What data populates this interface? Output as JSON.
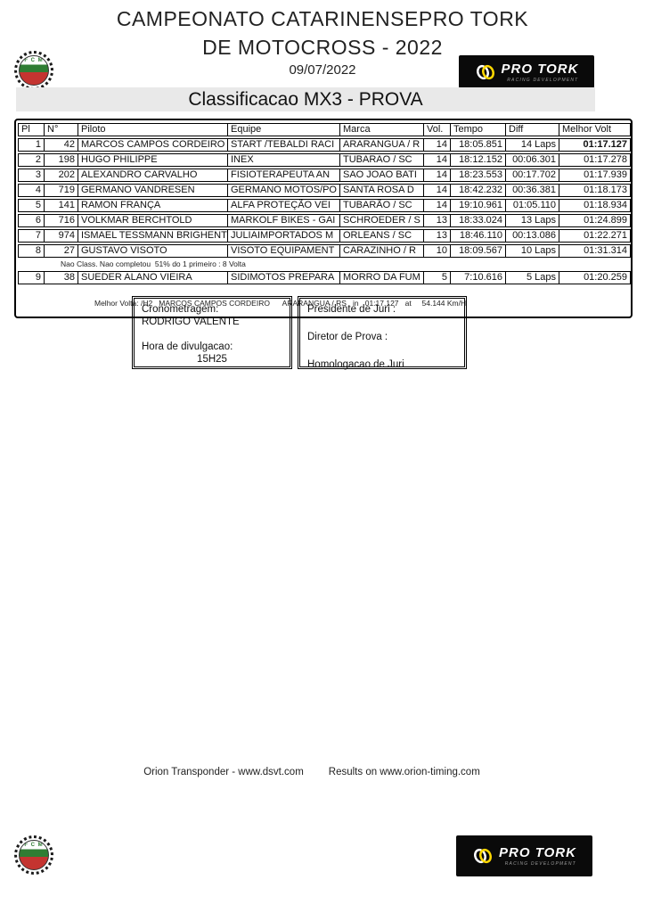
{
  "header": {
    "title_line1": "CAMPEONATO CATARINENSEPRO TORK",
    "title_line2": "DE MOTOCROSS - 2022",
    "date": "09/07/2022",
    "banner": "Classificacao MX3 - PROVA"
  },
  "logos": {
    "fcm_label": "F C M",
    "protork_name": "PRO TORK",
    "protork_sub": "RACING DEVELOPMENT",
    "protork_bg": "#0a0a0a",
    "protork_accent": "#ffd800",
    "fcm_green": "#2f7d33",
    "fcm_red": "#c43430"
  },
  "results_table": {
    "columns": [
      "Pl",
      "N°",
      "Piloto",
      "Equipe",
      "Marca",
      "Vol.",
      "Tempo",
      "Diff",
      "Melhor Volt"
    ],
    "rows": [
      {
        "pl": "1",
        "num": "42",
        "pilot": "MARCOS CAMPOS CORDEIRO",
        "team": "START /TEBALDI RACI",
        "brand": "ARARANGUA / R",
        "laps": "14",
        "time": "18:05.851",
        "diff": "14 Laps",
        "best": "01:17.127",
        "best_bold": true
      },
      {
        "pl": "2",
        "num": "198",
        "pilot": "HUGO PHILIPPE",
        "team": "INEX",
        "brand": "TUBARAO / SC",
        "laps": "14",
        "time": "18:12.152",
        "diff": "00:06.301",
        "best": "01:17.278"
      },
      {
        "pl": "3",
        "num": "202",
        "pilot": "ALEXANDRO CARVALHO",
        "team": "FISIOTERAPEUTA AN",
        "brand": "SAO JOAO BATI",
        "laps": "14",
        "time": "18:23.553",
        "diff": "00:17.702",
        "best": "01:17.939"
      },
      {
        "pl": "4",
        "num": "719",
        "pilot": "GERMANO VANDRESEN",
        "team": "GERMANO MOTOS/PO",
        "brand": "SANTA ROSA D",
        "laps": "14",
        "time": "18:42.232",
        "diff": "00:36.381",
        "best": "01:18.173"
      },
      {
        "pl": "5",
        "num": "141",
        "pilot": "RAMON FRANÇA",
        "team": "ALFA PROTEÇÃO VEI",
        "brand": "TUBARÃO / SC",
        "laps": "14",
        "time": "19:10.961",
        "diff": "01:05.110",
        "best": "01:18.934"
      },
      {
        "pl": "6",
        "num": "716",
        "pilot": "VOLKMAR BERCHTOLD",
        "team": "MARKOLF BIKES - GAI",
        "brand": "SCHROEDER / S",
        "laps": "13",
        "time": "18:33.024",
        "diff": "13 Laps",
        "best": "01:24.899"
      },
      {
        "pl": "7",
        "num": "974",
        "pilot": "ISMAEL TESSMANN BRIGHENT",
        "team": "JULIAIMPORTADOS M",
        "brand": "ORLEANS / SC",
        "laps": "13",
        "time": "18:46.110",
        "diff": "00:13.086",
        "best": "01:22.271"
      },
      {
        "pl": "8",
        "num": "27",
        "pilot": "GUSTAVO VISOTO",
        "team": "VISOTO EQUIPAMENT",
        "brand": "CARAZINHO / R",
        "laps": "10",
        "time": "18:09.567",
        "diff": "10 Laps",
        "best": "01:31.314"
      }
    ],
    "not_classified_note": "Nao Class. Nao completou  51% do 1 primeiro : 8 Volta",
    "nc_rows": [
      {
        "pl": "9",
        "num": "38",
        "pilot": "SUEDER ALANO VIEIRA",
        "team": "SIDIMOTOS PREPARA",
        "brand": "MORRO DA FUM",
        "laps": "5",
        "time": "7:10.616",
        "diff": "5 Laps",
        "best": "01:20.259"
      }
    ],
    "best_lap_line": "Melhor Volta: /H2   MARCOS CAMPOS CORDEIRO      ARARANGUA / RS   in   01:17.127   at     54.144 Km/H"
  },
  "officials": {
    "timekeeping_label": "Cronometragem:",
    "timekeeper_name": "RODRIGO VALENTE",
    "publish_time_label": "Hora de divulgacao:",
    "publish_time_value": "15H25",
    "jury_president_label": "Presidente de Juri :",
    "race_director_label": "Diretor de Prova :",
    "jury_homologation_label": "Homologacao de Juri"
  },
  "footer": {
    "transponder_text": "Orion Transponder - www.dsvt.com",
    "results_text": "Results on www.orion-timing.com"
  }
}
